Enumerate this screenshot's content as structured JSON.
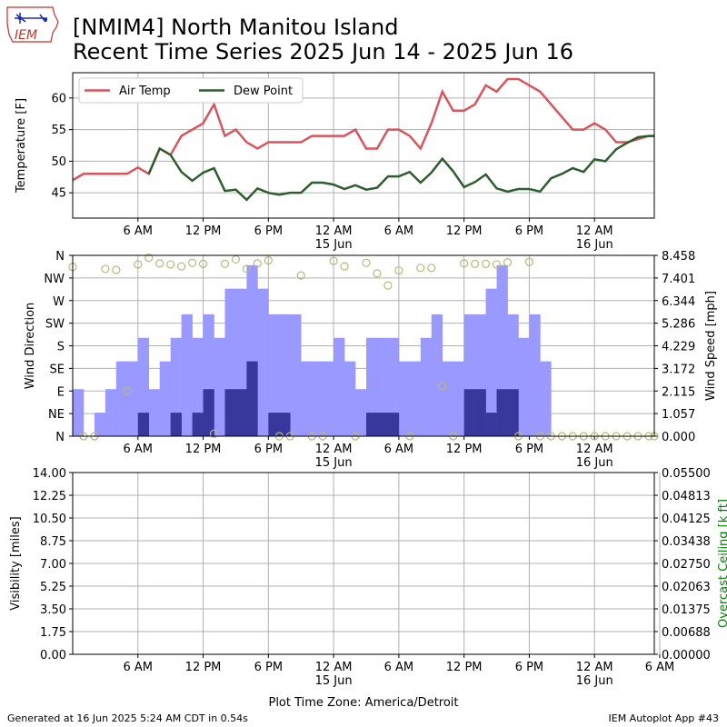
{
  "header": {
    "logo_text": "IEM",
    "title_line1": "[NMIM4] North Manitou Island",
    "title_line2": "Recent Time Series 2025 Jun 14 - 2025 Jun 16"
  },
  "footer": {
    "left": "Generated at 16 Jun 2025 5:24 AM CDT in 0.54s",
    "right": "IEM Autoplot App #43"
  },
  "colors": {
    "air_temp": "#d9545c",
    "dew_point": "#2e5e2e",
    "gust_bar": "#9999ff",
    "speed_bar": "#38389c",
    "direction_marker": "#b8b87a",
    "ceiling_axis_label": "#008000",
    "grid": "#b0b0b0"
  },
  "chart_data": [
    {
      "type": "line",
      "ylabel": "Temperature [F]",
      "ylim": [
        41,
        64
      ],
      "yticks": [
        "45",
        "50",
        "55",
        "60"
      ],
      "xlim_hours": [
        0,
        53.5
      ],
      "xticks": [
        "6 AM",
        "12 PM",
        "6 PM",
        "12 AM\n15 Jun",
        "6 AM",
        "12 PM",
        "6 PM",
        "12 AM\n16 Jun"
      ],
      "grid": true,
      "legend_position": "top-left",
      "series": [
        {
          "name": "Air Temp",
          "x_hours": [
            0,
            1,
            2,
            3,
            4,
            5,
            6,
            7,
            8,
            9,
            10,
            11,
            12,
            13,
            14,
            15,
            16,
            17,
            18,
            19,
            20,
            21,
            22,
            23,
            24,
            25,
            26,
            27,
            28,
            29,
            30,
            31,
            32,
            33,
            34,
            35,
            36,
            37,
            38,
            39,
            40,
            41,
            42,
            43,
            44,
            45,
            46,
            47,
            48,
            49,
            50,
            51,
            52,
            53,
            53.5
          ],
          "values": [
            47,
            48,
            48,
            48,
            48,
            48,
            49,
            48,
            52,
            51,
            54,
            55,
            56,
            59,
            54,
            55,
            53,
            52,
            53,
            53,
            53,
            53,
            54,
            54,
            54,
            54,
            55,
            52,
            52,
            55,
            55,
            54,
            52,
            56,
            61,
            58,
            58,
            59,
            62,
            61,
            63,
            63,
            62,
            61,
            59,
            57,
            55,
            55,
            56,
            55,
            53,
            53,
            53.5,
            54,
            54
          ]
        },
        {
          "name": "Dew Point",
          "x_hours": [
            7,
            8,
            9,
            10,
            11,
            12,
            13,
            14,
            15,
            16,
            17,
            18,
            19,
            20,
            21,
            22,
            23,
            24,
            25,
            26,
            27,
            28,
            29,
            30,
            31,
            32,
            33,
            34,
            35,
            36,
            37,
            38,
            39,
            40,
            41,
            42,
            43,
            44,
            45,
            46,
            47,
            48,
            49,
            50,
            51,
            52,
            53,
            53.5
          ],
          "values": [
            48,
            52,
            51,
            48.3,
            46.9,
            48.2,
            48.9,
            45.3,
            45.5,
            43.9,
            45.7,
            45,
            44.7,
            45,
            45,
            46.6,
            46.6,
            46.3,
            45.6,
            46.2,
            45.5,
            45.8,
            47.6,
            47.6,
            48.3,
            46.6,
            48.2,
            50.4,
            48.4,
            45.9,
            46.7,
            47.9,
            45.7,
            45.2,
            45.6,
            45.6,
            45.2,
            47.3,
            48,
            48.9,
            48.3,
            50.3,
            50,
            51.9,
            52.9,
            53.8,
            54,
            54
          ]
        }
      ]
    },
    {
      "type": "bar",
      "ylabel": "Wind Direction",
      "y2label": "Wind Speed [mph]",
      "left_ticks": [
        "N",
        "NE",
        "E",
        "SE",
        "S",
        "SW",
        "W",
        "NW",
        "N"
      ],
      "right_ticks": [
        "0.000",
        "1.057",
        "2.115",
        "3.172",
        "4.229",
        "5.286",
        "6.344",
        "7.401",
        "8.458"
      ],
      "ylim_direction_deg": [
        0,
        360
      ],
      "ylim_speed_mph": [
        0,
        8.458
      ],
      "xlim_hours": [
        0,
        53.5
      ],
      "xticks": [
        "6 AM",
        "12 PM",
        "6 PM",
        "12 AM\n15 Jun",
        "6 AM",
        "12 PM",
        "6 PM",
        "12 AM\n16 Jun"
      ],
      "grid": true,
      "series": [
        {
          "name": "gust",
          "x_hours": [
            0.5,
            1.5,
            2.5,
            3.5,
            4.5,
            5.5,
            6.5,
            7.5,
            8.5,
            9.5,
            10.5,
            11.5,
            12.5,
            13.5,
            14.5,
            15.5,
            16.5,
            17.5,
            18.5,
            19.5,
            20.5,
            21.5,
            22.5,
            23.5,
            24.5,
            25.5,
            26.5,
            27.5,
            28.5,
            29.5,
            30.5,
            31.5,
            32.5,
            33.5,
            34.5,
            35.5,
            36.5,
            37.5,
            38.5,
            39.5,
            40.5,
            41.5,
            42.5,
            43.5
          ],
          "values": [
            2.2,
            0,
            1.1,
            2.2,
            3.5,
            3.5,
            4.6,
            2.2,
            3.5,
            4.6,
            5.7,
            4.6,
            5.7,
            4.6,
            6.9,
            6.9,
            8.0,
            6.9,
            5.7,
            5.7,
            5.7,
            3.5,
            3.5,
            3.5,
            4.6,
            3.5,
            2.2,
            4.6,
            4.6,
            4.6,
            3.5,
            3.5,
            4.6,
            5.7,
            3.5,
            3.5,
            5.7,
            5.7,
            6.9,
            8.0,
            5.7,
            4.6,
            5.7,
            3.5
          ]
        },
        {
          "name": "speed",
          "x_hours": [
            0.5,
            1.5,
            2.5,
            3.5,
            4.5,
            5.5,
            6.5,
            7.5,
            8.5,
            9.5,
            10.5,
            11.5,
            12.5,
            13.5,
            14.5,
            15.5,
            16.5,
            17.5,
            18.5,
            19.5,
            20.5,
            21.5,
            22.5,
            23.5,
            24.5,
            25.5,
            26.5,
            27.5,
            28.5,
            29.5,
            30.5,
            31.5,
            32.5,
            33.5,
            34.5,
            35.5,
            36.5,
            37.5,
            38.5,
            39.5,
            40.5,
            41.5,
            42.5,
            43.5
          ],
          "values": [
            0,
            0,
            0,
            0,
            0,
            0,
            1.1,
            0,
            0,
            1.1,
            0,
            1.1,
            2.2,
            0,
            2.2,
            2.2,
            3.5,
            0,
            1.1,
            1.1,
            0,
            0,
            0,
            0,
            0,
            0,
            0,
            1.1,
            1.1,
            1.1,
            0,
            0,
            0,
            0,
            0,
            0,
            2.2,
            2.2,
            1.1,
            2.2,
            2.2,
            0,
            0,
            0
          ]
        },
        {
          "name": "direction",
          "x_hours": [
            0,
            1,
            2,
            3,
            4,
            5,
            6,
            7,
            8,
            9,
            10,
            11,
            12,
            13,
            14,
            15,
            16,
            17,
            18,
            19,
            20,
            21,
            22,
            23,
            24,
            25,
            26,
            27,
            28,
            29,
            30,
            31,
            32,
            33,
            34,
            35,
            36,
            37,
            38,
            39,
            40,
            41,
            42,
            43,
            44,
            45,
            46,
            47,
            48,
            49,
            50,
            51,
            52,
            53,
            53.5
          ],
          "values_deg": [
            337,
            0,
            0,
            333,
            331,
            90,
            342,
            355,
            344,
            342,
            338,
            345,
            343,
            5,
            343,
            352,
            333,
            344,
            350,
            0,
            0,
            320,
            0,
            0,
            349,
            338,
            0,
            345,
            324,
            300,
            330,
            0,
            335,
            335,
            100,
            0,
            344,
            343,
            343,
            342,
            346,
            0,
            347,
            0,
            0,
            0,
            0,
            0,
            0,
            0,
            0,
            0,
            0,
            0,
            0
          ]
        }
      ]
    },
    {
      "type": "line",
      "ylabel": "Visibility [miles]",
      "y2label": "Overcast Ceiling [k ft]",
      "left_ticks": [
        "0.00",
        "1.75",
        "3.50",
        "5.25",
        "7.00",
        "8.75",
        "10.50",
        "12.25",
        "14.00"
      ],
      "right_ticks": [
        "0.00000",
        "0.00688",
        "0.01375",
        "0.02063",
        "0.02750",
        "0.03438",
        "0.04125",
        "0.04813",
        "0.05500"
      ],
      "ylim": [
        0,
        14
      ],
      "y2lim": [
        0,
        0.055
      ],
      "xlim_hours": [
        0,
        53.5
      ],
      "xticks": [
        "6 AM",
        "12 PM",
        "6 PM",
        "12 AM\n15 Jun",
        "6 AM",
        "12 PM",
        "6 PM",
        "12 AM\n16 Jun",
        "6 AM"
      ],
      "xlabel": "Plot Time Zone: America/Detroit",
      "grid": true,
      "series": []
    }
  ]
}
